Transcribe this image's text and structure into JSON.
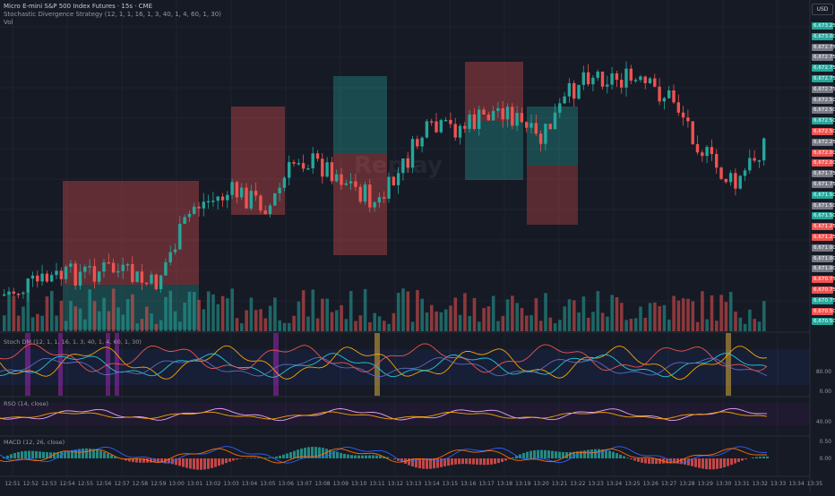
{
  "header": {
    "symbol_line": "Micro E-mini S&P 500 Index Futures · 15s · CME",
    "indicator_line": "Stochastic Divergence Strategy (12, 1, 1, 16, 1, 3, 40, 1, 4, 60, 1, 30)",
    "volume_label": "Vol",
    "currency": "USD",
    "watermark": "Replay"
  },
  "panels": {
    "stoch_label": "Stoch DM (12, 1, 1, 16, 1, 3, 40, 1, 4, 60, 1, 30)",
    "rsi_label": "RSO (14, close)",
    "macd_label": "MACD (12, 26, close)"
  },
  "price_axis": [
    {
      "label": "6,673.25",
      "color": "#26a69a"
    },
    {
      "label": "6,673.00",
      "color": "#26a69a"
    },
    {
      "label": "6,672.75",
      "color": "#787b86"
    },
    {
      "label": "6,672.75",
      "color": "#787b86"
    },
    {
      "label": "6,672.75",
      "color": "#26a69a"
    },
    {
      "label": "6,672.75",
      "color": "#26a69a"
    },
    {
      "label": "6,672.75",
      "color": "#787b86"
    },
    {
      "label": "6,672.50",
      "color": "#787b86"
    },
    {
      "label": "6,672.50",
      "color": "#787b86"
    },
    {
      "label": "6,672.50",
      "color": "#26a69a"
    },
    {
      "label": "6,672.50",
      "color": "#ef5350"
    },
    {
      "label": "6,672.25",
      "color": "#787b86"
    },
    {
      "label": "6,672.00",
      "color": "#ef5350"
    },
    {
      "label": "6,672.00",
      "color": "#ef5350"
    },
    {
      "label": "6,671.75",
      "color": "#787b86"
    },
    {
      "label": "6,671.75",
      "color": "#787b86"
    },
    {
      "label": "6,671.50",
      "color": "#26a69a"
    },
    {
      "label": "6,671.50",
      "color": "#787b86"
    },
    {
      "label": "6,671.50",
      "color": "#26a69a"
    },
    {
      "label": "6,671.25",
      "color": "#ef5350"
    },
    {
      "label": "6,671.25",
      "color": "#ef5350"
    },
    {
      "label": "6,671.00",
      "color": "#787b86"
    },
    {
      "label": "6,671.00",
      "color": "#787b86"
    },
    {
      "label": "6,671.00",
      "color": "#787b86"
    },
    {
      "label": "6,670.75",
      "color": "#ef5350"
    },
    {
      "label": "6,670.75",
      "color": "#ef5350"
    },
    {
      "label": "6,670.75",
      "color": "#26a69a"
    },
    {
      "label": "6,670.50",
      "color": "#ef5350"
    },
    {
      "label": "6,670.50",
      "color": "#26a69a"
    }
  ],
  "stoch_axis": [
    "80.00",
    "0.00"
  ],
  "rsi_axis": [
    "40.00"
  ],
  "macd_axis": [
    "0.50",
    "0.00"
  ],
  "time_axis": [
    "12:51",
    "12:52",
    "12:53",
    "12:54",
    "12:55",
    "12:56",
    "12:57",
    "12:58",
    "12:59",
    "13:00",
    "13:01",
    "13:02",
    "13:03",
    "13:04",
    "13:05",
    "13:06",
    "13:07",
    "13:08",
    "13:09",
    "13:10",
    "13:11",
    "13:12",
    "13:13",
    "13:14",
    "13:15",
    "13:16",
    "13:17",
    "13:18",
    "13:19",
    "13:20",
    "13:21",
    "13:22",
    "13:23",
    "13:24",
    "13:25",
    "13:26",
    "13:27",
    "13:28",
    "13:29",
    "13:30",
    "13:31",
    "13:32",
    "13:33",
    "13:34",
    "13:35"
  ],
  "colors": {
    "up": "#26a69a",
    "down": "#ef5350",
    "bg": "#161a25",
    "grid": "#232632"
  }
}
